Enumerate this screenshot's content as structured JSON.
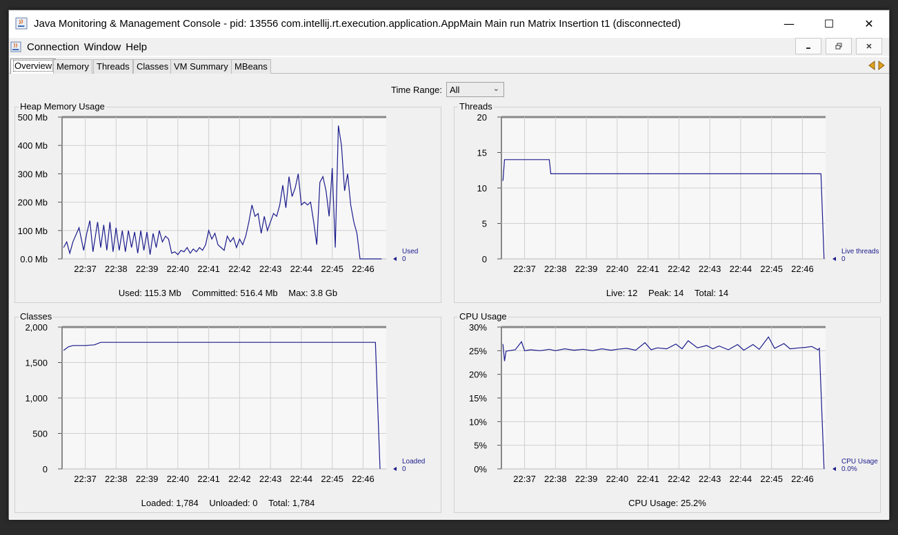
{
  "window": {
    "title": "Java Monitoring & Management Console - pid: 13556 com.intellij.rt.execution.application.AppMain Main run Matrix Insertion t1 (disconnected)",
    "buttons": {
      "minimize": "—",
      "maximize": "☐",
      "close": "✕"
    }
  },
  "menu": {
    "items": [
      "Connection",
      "Window",
      "Help"
    ]
  },
  "tabs": [
    "Overview",
    "Memory",
    "Threads",
    "Classes",
    "VM Summary",
    "MBeans"
  ],
  "time_range": {
    "label": "Time Range:",
    "value": "All"
  },
  "panels": {
    "heap": {
      "title": "Heap Memory Usage",
      "legend_name": "Used",
      "legend_value": "0",
      "footer": [
        "Used: 115.3 Mb",
        "Committed: 516.4 Mb",
        "Max: 3.8 Gb"
      ]
    },
    "threads": {
      "title": "Threads",
      "legend_name": "Live threads",
      "legend_value": "0",
      "footer": [
        "Live: 12",
        "Peak: 14",
        "Total: 14"
      ]
    },
    "classes": {
      "title": "Classes",
      "legend_name": "Loaded",
      "legend_value": "0",
      "footer": [
        "Loaded: 1,784",
        "Unloaded: 0",
        "Total: 1,784"
      ]
    },
    "cpu": {
      "title": "CPU Usage",
      "legend_name": "CPU Usage",
      "legend_value": "0.0%",
      "footer": [
        "CPU Usage: 25.2%"
      ]
    }
  },
  "colors": {
    "line": "#1a1a8c",
    "plot_bg": "#f7f7f7",
    "grid": "#cfcfcf",
    "panel_bg": "#f0f0f0"
  },
  "chart_data": [
    {
      "type": "line",
      "title": "Heap Memory Usage",
      "ylabel": "",
      "unit": "Mb",
      "ylim": [
        0,
        500
      ],
      "y_ticks": [
        "0.0 Mb",
        "100 Mb",
        "200 Mb",
        "300 Mb",
        "400 Mb",
        "500 Mb"
      ],
      "x_ticks": [
        "22:37",
        "22:38",
        "22:39",
        "22:40",
        "22:41",
        "22:42",
        "22:43",
        "22:44",
        "22:45",
        "22:46"
      ],
      "xlim": [
        22.25,
        32.75
      ],
      "series": [
        {
          "name": "Used",
          "x": [
            22.3,
            22.4,
            22.5,
            22.6,
            22.8,
            22.95,
            23.05,
            23.15,
            23.25,
            23.4,
            23.5,
            23.6,
            23.7,
            23.8,
            23.9,
            24.0,
            24.1,
            24.2,
            24.3,
            24.4,
            24.5,
            24.6,
            24.7,
            24.8,
            24.9,
            25.0,
            25.1,
            25.2,
            25.3,
            25.4,
            25.5,
            25.6,
            25.7,
            25.8,
            25.9,
            26.0,
            26.1,
            26.2,
            26.3,
            26.4,
            26.5,
            26.6,
            26.7,
            26.8,
            26.9,
            27.0,
            27.1,
            27.2,
            27.3,
            27.4,
            27.5,
            27.6,
            27.7,
            27.8,
            27.9,
            28.0,
            28.1,
            28.2,
            28.3,
            28.4,
            28.5,
            28.6,
            28.7,
            28.8,
            28.9,
            29.0,
            29.1,
            29.2,
            29.3,
            29.4,
            29.5,
            29.6,
            29.7,
            29.8,
            29.9,
            30.0,
            30.1,
            30.2,
            30.3,
            30.4,
            30.5,
            30.6,
            30.7,
            30.8,
            30.9,
            31.0,
            31.1,
            31.2,
            31.3,
            31.4,
            31.5,
            31.6,
            31.7,
            31.8,
            31.9,
            32.0,
            32.05,
            32.1,
            32.15,
            32.2,
            32.3,
            32.4,
            32.5,
            32.6
          ],
          "y": [
            40,
            60,
            20,
            60,
            110,
            30,
            90,
            135,
            25,
            130,
            40,
            120,
            30,
            130,
            25,
            110,
            30,
            100,
            25,
            100,
            40,
            95,
            20,
            100,
            30,
            95,
            15,
            90,
            40,
            100,
            60,
            80,
            70,
            20,
            25,
            15,
            30,
            25,
            40,
            20,
            35,
            25,
            40,
            30,
            50,
            100,
            70,
            90,
            50,
            40,
            30,
            80,
            60,
            75,
            40,
            70,
            50,
            80,
            130,
            190,
            150,
            160,
            90,
            150,
            100,
            130,
            160,
            150,
            190,
            260,
            180,
            290,
            220,
            250,
            300,
            190,
            200,
            190,
            200,
            130,
            50,
            270,
            290,
            240,
            150,
            320,
            40,
            470,
            400,
            240,
            300,
            190,
            130,
            90,
            0,
            0,
            0,
            0,
            0,
            0,
            0,
            0,
            0,
            0
          ]
        }
      ]
    },
    {
      "type": "line",
      "title": "Threads",
      "ylim": [
        0,
        20
      ],
      "y_ticks": [
        "0",
        "5",
        "10",
        "15",
        "20"
      ],
      "x_ticks": [
        "22:37",
        "22:38",
        "22:39",
        "22:40",
        "22:41",
        "22:42",
        "22:43",
        "22:44",
        "22:45",
        "22:46"
      ],
      "xlim": [
        22.25,
        32.75
      ],
      "series": [
        {
          "name": "Live threads",
          "x": [
            22.3,
            22.35,
            23.8,
            23.85,
            32.6,
            32.7
          ],
          "y": [
            11,
            14,
            14,
            12,
            12,
            0
          ]
        }
      ]
    },
    {
      "type": "line",
      "title": "Classes",
      "ylim": [
        0,
        2000
      ],
      "y_ticks": [
        "0",
        "500",
        "1,000",
        "1,500",
        "2,000"
      ],
      "x_ticks": [
        "22:37",
        "22:38",
        "22:39",
        "22:40",
        "22:41",
        "22:42",
        "22:43",
        "22:44",
        "22:45",
        "22:46"
      ],
      "xlim": [
        22.25,
        32.75
      ],
      "series": [
        {
          "name": "Loaded",
          "x": [
            22.3,
            22.45,
            22.6,
            23.0,
            23.3,
            23.5,
            32.4,
            32.55
          ],
          "y": [
            1670,
            1720,
            1740,
            1740,
            1750,
            1784,
            1784,
            0
          ]
        }
      ]
    },
    {
      "type": "line",
      "title": "CPU Usage",
      "ylim": [
        0,
        30
      ],
      "y_ticks": [
        "0%",
        "5%",
        "10%",
        "15%",
        "20%",
        "25%",
        "30%"
      ],
      "x_ticks": [
        "22:37",
        "22:38",
        "22:39",
        "22:40",
        "22:41",
        "22:42",
        "22:43",
        "22:44",
        "22:45",
        "22:46"
      ],
      "xlim": [
        22.25,
        32.75
      ],
      "series": [
        {
          "name": "CPU Usage",
          "x": [
            22.3,
            22.35,
            22.4,
            22.5,
            22.7,
            22.9,
            23.0,
            23.2,
            23.5,
            23.8,
            24.0,
            24.3,
            24.6,
            24.9,
            25.2,
            25.5,
            25.8,
            26.0,
            26.3,
            26.6,
            26.9,
            27.1,
            27.3,
            27.6,
            27.9,
            28.1,
            28.3,
            28.6,
            28.9,
            29.1,
            29.3,
            29.6,
            29.9,
            30.1,
            30.4,
            30.6,
            30.9,
            31.1,
            31.4,
            31.6,
            31.9,
            32.1,
            32.3,
            32.5,
            32.55,
            32.7
          ],
          "y": [
            26.4,
            22.8,
            24.9,
            25.0,
            25.2,
            26.9,
            25.0,
            25.2,
            25.0,
            25.3,
            25.0,
            25.4,
            25.1,
            25.3,
            25.0,
            25.4,
            25.1,
            25.3,
            25.5,
            25.1,
            26.7,
            25.2,
            25.6,
            25.4,
            26.4,
            25.4,
            27.1,
            25.6,
            26.1,
            25.4,
            26.0,
            25.2,
            26.3,
            25.1,
            26.3,
            25.3,
            27.9,
            25.5,
            26.5,
            25.4,
            25.6,
            25.7,
            25.9,
            25.2,
            25.5,
            0.0
          ]
        }
      ]
    }
  ]
}
